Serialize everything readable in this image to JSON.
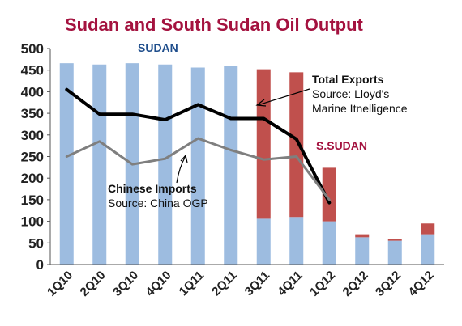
{
  "chart_data": {
    "type": "bar",
    "title": "Sudan and South Sudan Oil Output",
    "categories": [
      "1Q10",
      "2Q10",
      "3Q10",
      "4Q10",
      "1Q11",
      "2Q11",
      "3Q11",
      "4Q11",
      "1Q12",
      "2Q12",
      "3Q12",
      "4Q12"
    ],
    "ylim": [
      0,
      500
    ],
    "yticks": [
      0,
      50,
      100,
      150,
      200,
      250,
      300,
      350,
      400,
      450,
      500
    ],
    "grid": false,
    "stacked": true,
    "series": [
      {
        "name": "SUDAN",
        "kind": "bar",
        "color": "#9dbce0",
        "values": [
          466,
          463,
          466,
          463,
          456,
          459,
          106,
          110,
          100,
          63,
          55,
          70
        ]
      },
      {
        "name": "S.SUDAN",
        "kind": "bar",
        "color": "#c0504d",
        "values": [
          0,
          0,
          0,
          0,
          0,
          0,
          346,
          335,
          124,
          7,
          4,
          25
        ]
      },
      {
        "name": "Total Exports",
        "kind": "line",
        "color": "#000000",
        "values": [
          405,
          348,
          348,
          335,
          370,
          338,
          338,
          290,
          143,
          null,
          null,
          null
        ]
      },
      {
        "name": "Chinese Imports",
        "kind": "line",
        "color": "#7f7f7f",
        "values": [
          250,
          285,
          232,
          245,
          292,
          265,
          243,
          250,
          150,
          null,
          null,
          null
        ]
      }
    ],
    "annotations": {
      "sudan_label": "SUDAN",
      "ssudan_label": "S.SUDAN",
      "exports_title": "Total Exports",
      "exports_source_1": "Source: Lloyd's",
      "exports_source_2": "Marine Itnelligence",
      "imports_title": "Chinese Imports",
      "imports_source": "Source: China OGP"
    }
  }
}
